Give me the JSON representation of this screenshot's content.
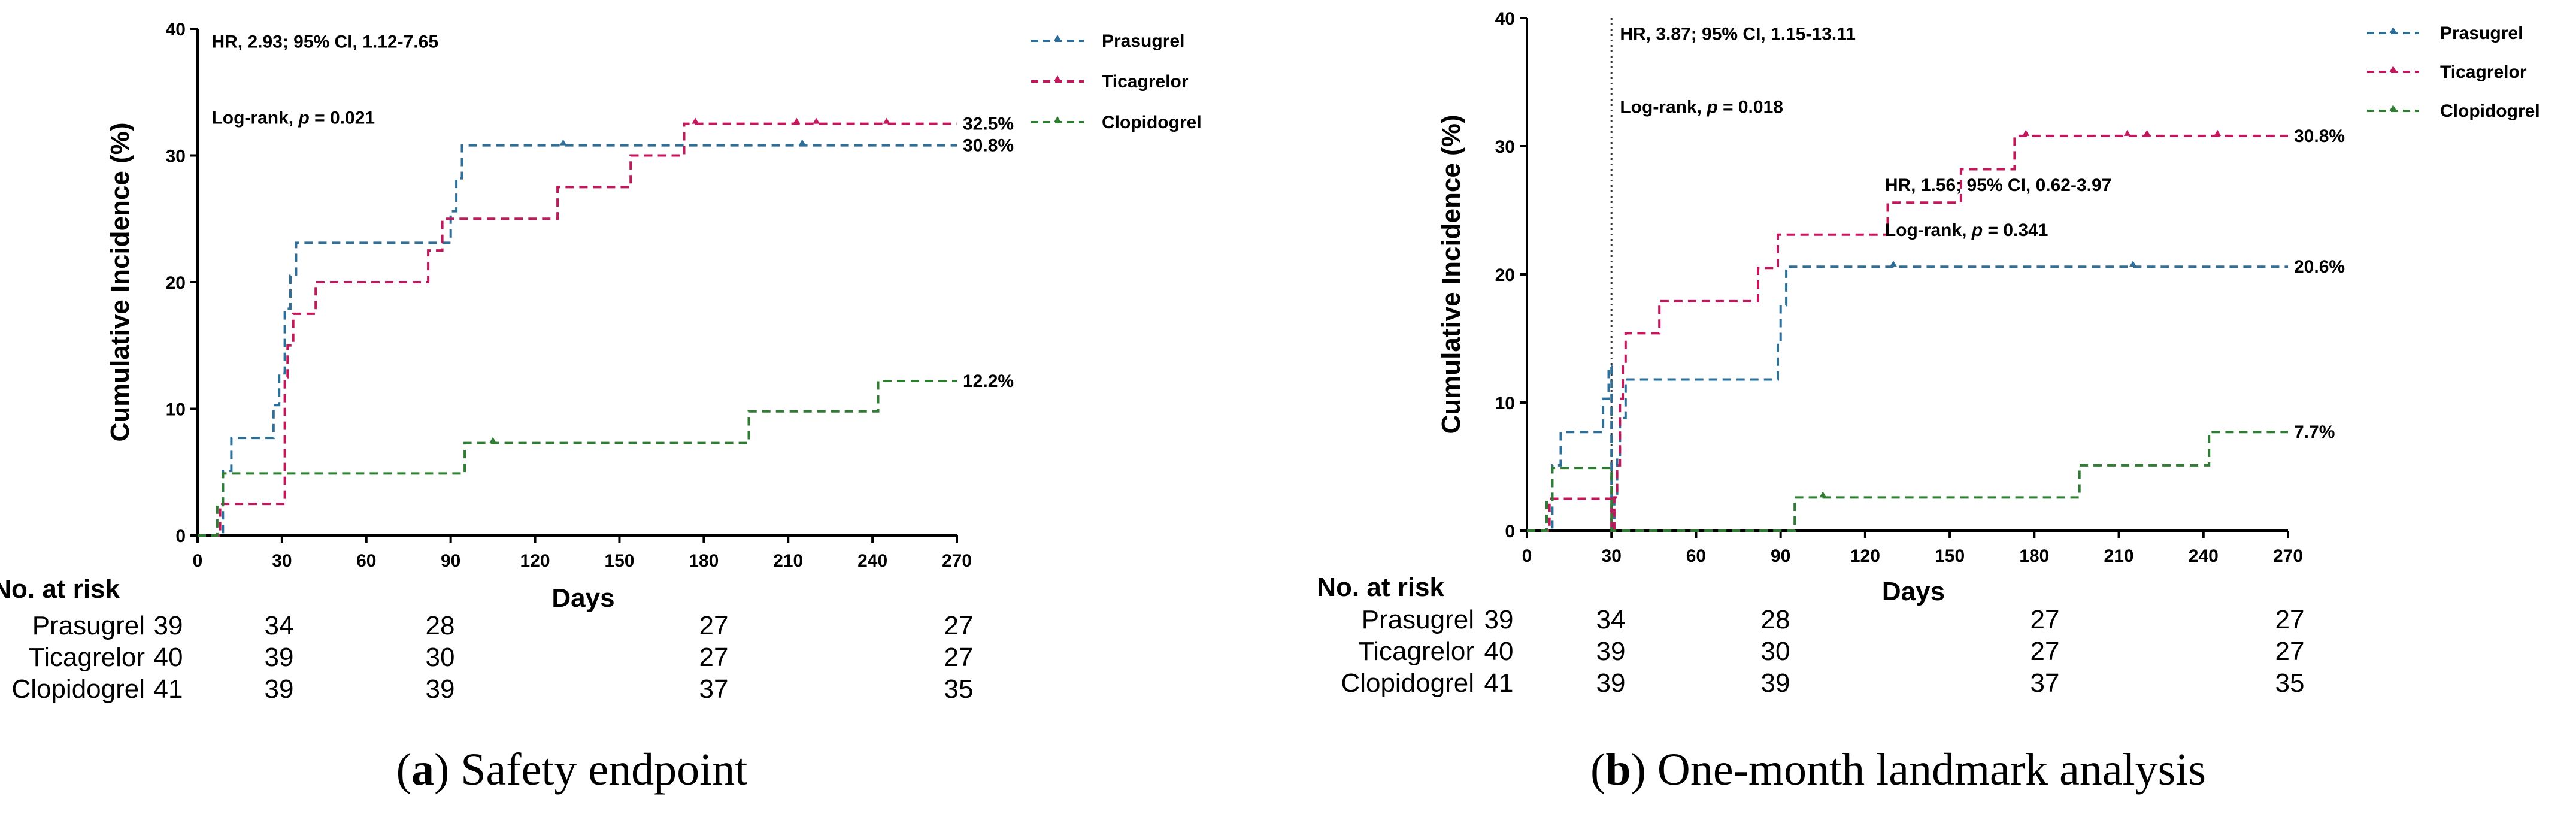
{
  "chart_data": [
    {
      "type": "line",
      "subtitle_letter": "a",
      "caption": "Safety endpoint",
      "xlabel": "Days",
      "ylabel": "Cumulative Incidence (%)",
      "xlim": [
        0,
        270
      ],
      "ylim": [
        0,
        40
      ],
      "xticks": [
        0,
        30,
        60,
        90,
        120,
        150,
        180,
        210,
        240,
        270
      ],
      "yticks": [
        0,
        10,
        20,
        30,
        40
      ],
      "grid": false,
      "legend_position": "top-right",
      "annotations": [
        {
          "prefix": "HR, 2.93; 95% CI, 1.12-7.65",
          "x": 5,
          "y": 38.5
        },
        {
          "prefix": "Log-rank, ",
          "italic": "p",
          "suffix": " = 0.021",
          "x": 5,
          "y": 32.5
        }
      ],
      "series": [
        {
          "name": "Prasugrel",
          "color": "#2e6f99",
          "end_label": "30.8%",
          "points": [
            [
              0,
              0
            ],
            [
              9,
              0
            ],
            [
              9,
              5.1
            ],
            [
              12,
              5.1
            ],
            [
              12,
              7.7
            ],
            [
              27,
              7.7
            ],
            [
              27,
              10.3
            ],
            [
              29,
              10.3
            ],
            [
              29,
              12.8
            ],
            [
              31,
              12.8
            ],
            [
              31,
              17.9
            ],
            [
              33,
              17.9
            ],
            [
              33,
              20.5
            ],
            [
              35,
              20.5
            ],
            [
              35,
              23.1
            ],
            [
              90,
              23.1
            ],
            [
              90,
              25.6
            ],
            [
              92,
              25.6
            ],
            [
              92,
              28.2
            ],
            [
              94,
              28.2
            ],
            [
              94,
              30.8
            ],
            [
              270,
              30.8
            ]
          ],
          "censor_x": [
            130,
            215
          ]
        },
        {
          "name": "Ticagrelor",
          "color": "#c2185b",
          "end_label": "32.5%",
          "points": [
            [
              0,
              0
            ],
            [
              8,
              0
            ],
            [
              8,
              2.5
            ],
            [
              31,
              2.5
            ],
            [
              31,
              12.5
            ],
            [
              32,
              12.5
            ],
            [
              32,
              15.0
            ],
            [
              34,
              15.0
            ],
            [
              34,
              17.5
            ],
            [
              42,
              17.5
            ],
            [
              42,
              20.0
            ],
            [
              82,
              20.0
            ],
            [
              82,
              22.5
            ],
            [
              87,
              22.5
            ],
            [
              87,
              25.0
            ],
            [
              128,
              25.0
            ],
            [
              128,
              27.5
            ],
            [
              154,
              27.5
            ],
            [
              154,
              30.0
            ],
            [
              173,
              30.0
            ],
            [
              173,
              32.5
            ],
            [
              270,
              32.5
            ]
          ],
          "censor_x": [
            177,
            213,
            220,
            245
          ]
        },
        {
          "name": "Clopidogrel",
          "color": "#2e7d32",
          "end_label": "12.2%",
          "points": [
            [
              0,
              0
            ],
            [
              7,
              0
            ],
            [
              7,
              2.4
            ],
            [
              9,
              2.4
            ],
            [
              9,
              4.9
            ],
            [
              95,
              4.9
            ],
            [
              95,
              7.3
            ],
            [
              196,
              7.3
            ],
            [
              196,
              9.8
            ],
            [
              242,
              9.8
            ],
            [
              242,
              12.2
            ],
            [
              270,
              12.2
            ]
          ],
          "censor_x": [
            105
          ]
        }
      ],
      "risk_table": {
        "title": "No. at risk",
        "times": [
          0,
          30,
          90,
          180,
          270
        ],
        "rows": [
          {
            "group": "Prasugrel",
            "values": [
              "39",
              "34",
              "28",
              "27",
              "27"
            ]
          },
          {
            "group": "Ticagrelor",
            "values": [
              "40",
              "39",
              "30",
              "27",
              "27"
            ]
          },
          {
            "group": "Clopidogrel",
            "values": [
              "41",
              "39",
              "39",
              "37",
              "35"
            ]
          }
        ]
      }
    },
    {
      "type": "line",
      "subtitle_letter": "b",
      "caption": "One-month landmark analysis",
      "xlabel": "Days",
      "ylabel": "Cumulative Incidence (%)",
      "xlim": [
        0,
        270
      ],
      "ylim": [
        0,
        40
      ],
      "xticks": [
        0,
        30,
        60,
        90,
        120,
        150,
        180,
        210,
        240,
        270
      ],
      "yticks": [
        0,
        10,
        20,
        30,
        40
      ],
      "grid": false,
      "legend_position": "top-right",
      "landmark_x": 30,
      "annotations": [
        {
          "prefix": "HR, 3.87; 95% CI, 1.15-13.11",
          "x": 33,
          "y": 38.3
        },
        {
          "prefix": "Log-rank, ",
          "italic": "p",
          "suffix": " = 0.018",
          "x": 33,
          "y": 32.6
        },
        {
          "prefix": "HR, 1.56; 95% CI, 0.62-3.97",
          "x": 127,
          "y": 26.5
        },
        {
          "prefix": "Log-rank, ",
          "italic": "p",
          "suffix": " = 0.341",
          "x": 127,
          "y": 23.0
        }
      ],
      "series": [
        {
          "name": "Prasugrel",
          "color": "#2e6f99",
          "end_label": "20.6%",
          "points": [
            [
              0,
              0
            ],
            [
              9,
              0
            ],
            [
              9,
              5.1
            ],
            [
              12,
              5.1
            ],
            [
              12,
              7.7
            ],
            [
              27,
              7.7
            ],
            [
              27,
              10.3
            ],
            [
              29,
              10.3
            ],
            [
              29,
              12.8
            ],
            [
              30,
              12.8
            ],
            [
              30,
              0
            ],
            [
              31,
              0
            ],
            [
              31,
              2.9
            ],
            [
              32,
              2.9
            ],
            [
              32,
              5.9
            ],
            [
              33,
              5.9
            ],
            [
              33,
              8.8
            ],
            [
              35,
              8.8
            ],
            [
              35,
              11.8
            ],
            [
              89,
              11.8
            ],
            [
              89,
              14.7
            ],
            [
              90,
              14.7
            ],
            [
              90,
              17.6
            ],
            [
              92,
              17.6
            ],
            [
              92,
              20.6
            ],
            [
              270,
              20.6
            ]
          ],
          "censor_x": [
            130,
            215
          ]
        },
        {
          "name": "Ticagrelor",
          "color": "#c2185b",
          "end_label": "30.8%",
          "points": [
            [
              0,
              0
            ],
            [
              8,
              0
            ],
            [
              8,
              2.5
            ],
            [
              30,
              2.5
            ],
            [
              30,
              0
            ],
            [
              31,
              0
            ],
            [
              31,
              2.6
            ],
            [
              32,
              2.6
            ],
            [
              32,
              5.1
            ],
            [
              33,
              5.1
            ],
            [
              33,
              10.3
            ],
            [
              34,
              10.3
            ],
            [
              34,
              12.8
            ],
            [
              35,
              12.8
            ],
            [
              35,
              15.4
            ],
            [
              47,
              15.4
            ],
            [
              47,
              17.9
            ],
            [
              82,
              17.9
            ],
            [
              82,
              20.5
            ],
            [
              89,
              20.5
            ],
            [
              89,
              23.1
            ],
            [
              128,
              23.1
            ],
            [
              128,
              25.6
            ],
            [
              154,
              25.6
            ],
            [
              154,
              28.2
            ],
            [
              173,
              28.2
            ],
            [
              173,
              30.8
            ],
            [
              270,
              30.8
            ]
          ],
          "censor_x": [
            177,
            213,
            220,
            245
          ]
        },
        {
          "name": "Clopidogrel",
          "color": "#2e7d32",
          "end_label": "7.7%",
          "points": [
            [
              0,
              0
            ],
            [
              7,
              0
            ],
            [
              7,
              2.4
            ],
            [
              9,
              2.4
            ],
            [
              9,
              4.9
            ],
            [
              30,
              4.9
            ],
            [
              30,
              0
            ],
            [
              95,
              0
            ],
            [
              95,
              2.6
            ],
            [
              196,
              2.6
            ],
            [
              196,
              5.1
            ],
            [
              242,
              5.1
            ],
            [
              242,
              7.7
            ],
            [
              270,
              7.7
            ]
          ],
          "censor_x": [
            105
          ]
        }
      ],
      "risk_table": {
        "title": "No. at risk",
        "times": [
          0,
          30,
          90,
          180,
          270
        ],
        "rows": [
          {
            "group": "Prasugrel",
            "values": [
              "39",
              "34",
              "28",
              "27",
              "27"
            ]
          },
          {
            "group": "Ticagrelor",
            "values": [
              "40",
              "39",
              "30",
              "27",
              "27"
            ]
          },
          {
            "group": "Clopidogrel",
            "values": [
              "41",
              "39",
              "39",
              "37",
              "35"
            ]
          }
        ]
      }
    }
  ]
}
